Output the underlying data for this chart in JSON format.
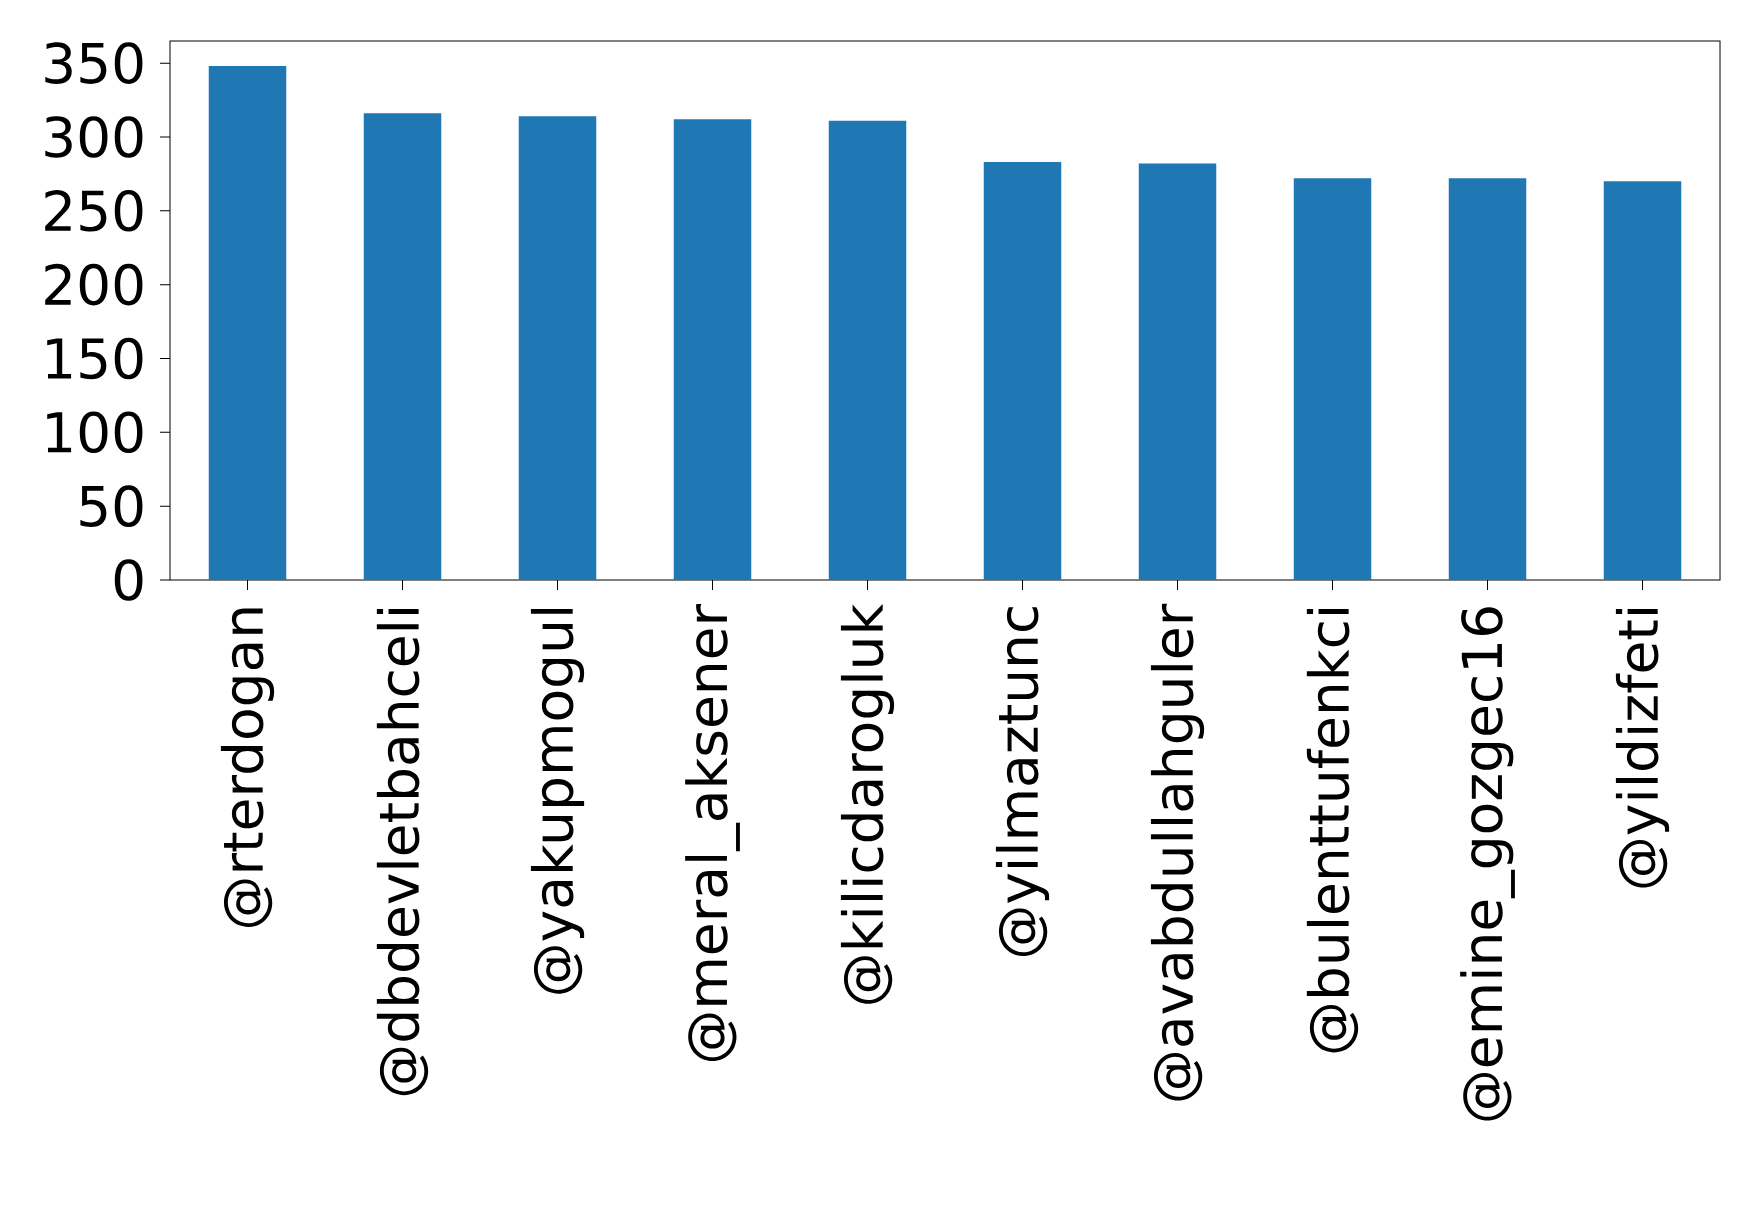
{
  "chart_data": {
    "type": "bar",
    "categories": [
      "@rterdogan",
      "@dbdevletbahceli",
      "@yakupmogul",
      "@meral_aksener",
      "@kilicdarogluk",
      "@yilmaztunc",
      "@avabdullahguler",
      "@bulenttufenkci",
      "@emine_gozgec16",
      "@yildizfeti"
    ],
    "values": [
      348,
      316,
      314,
      312,
      311,
      283,
      282,
      272,
      272,
      270
    ],
    "color": "#1f77b4",
    "ylim": [
      0,
      365
    ],
    "yticks": [
      0,
      50,
      100,
      150,
      200,
      250,
      300,
      350
    ]
  }
}
